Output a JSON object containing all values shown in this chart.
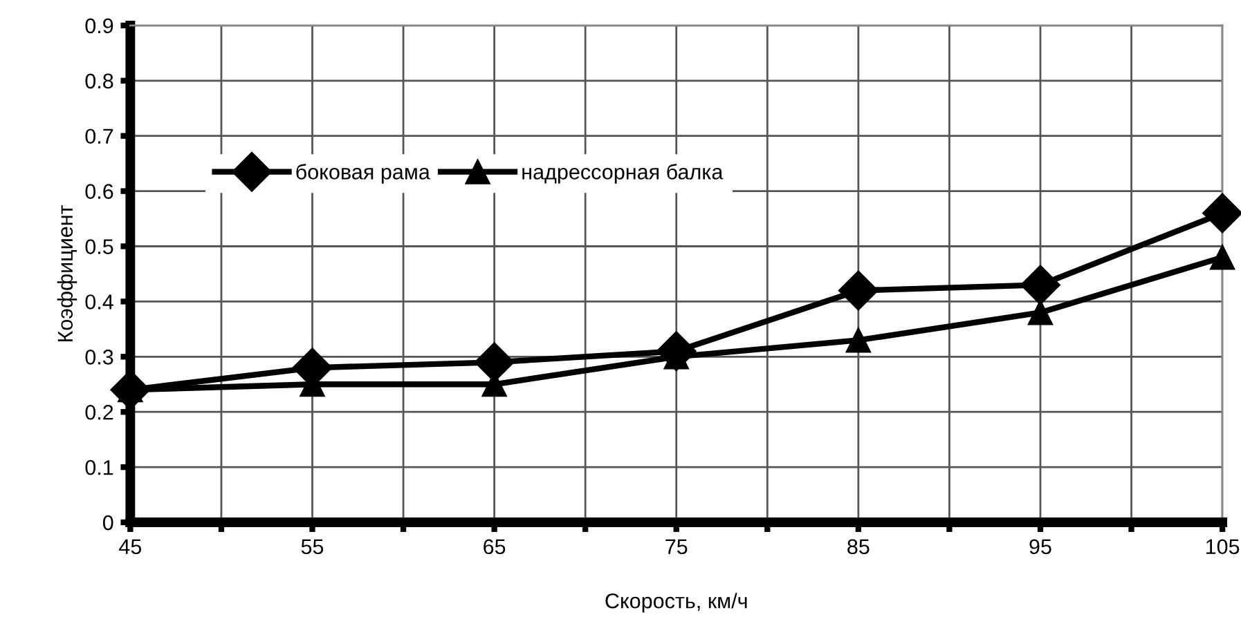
{
  "chart_data": {
    "type": "line",
    "xlabel": "Скорость, км/ч",
    "ylabel": "Коэффициент",
    "x": [
      45,
      55,
      65,
      75,
      85,
      95,
      105
    ],
    "series": [
      {
        "name": "боковая рама",
        "color": "#000000",
        "marker": "diamond",
        "values": [
          0.24,
          0.28,
          0.29,
          0.31,
          0.42,
          0.43,
          0.56
        ]
      },
      {
        "name": "надрессорная балка",
        "color": "#000000",
        "marker": "triangle",
        "values": [
          0.24,
          0.25,
          0.25,
          0.3,
          0.33,
          0.38,
          0.48
        ]
      }
    ],
    "xlim": [
      45,
      105
    ],
    "xticks": [
      45,
      {
        "value": 50,
        "label": null
      },
      55,
      {
        "value": 60,
        "label": null
      },
      65,
      {
        "value": 70,
        "label": null
      },
      75,
      {
        "value": 80,
        "label": null
      },
      85,
      {
        "value": 90,
        "label": null
      },
      95,
      {
        "value": 100,
        "label": null
      },
      105
    ],
    "ylim": [
      0,
      0.9
    ],
    "yticks": [
      0,
      0.1,
      0.2,
      0.3,
      0.4,
      0.5,
      0.6,
      0.7,
      0.8,
      0.9
    ],
    "grid": true,
    "legend": "top left",
    "line_style": "solid"
  }
}
